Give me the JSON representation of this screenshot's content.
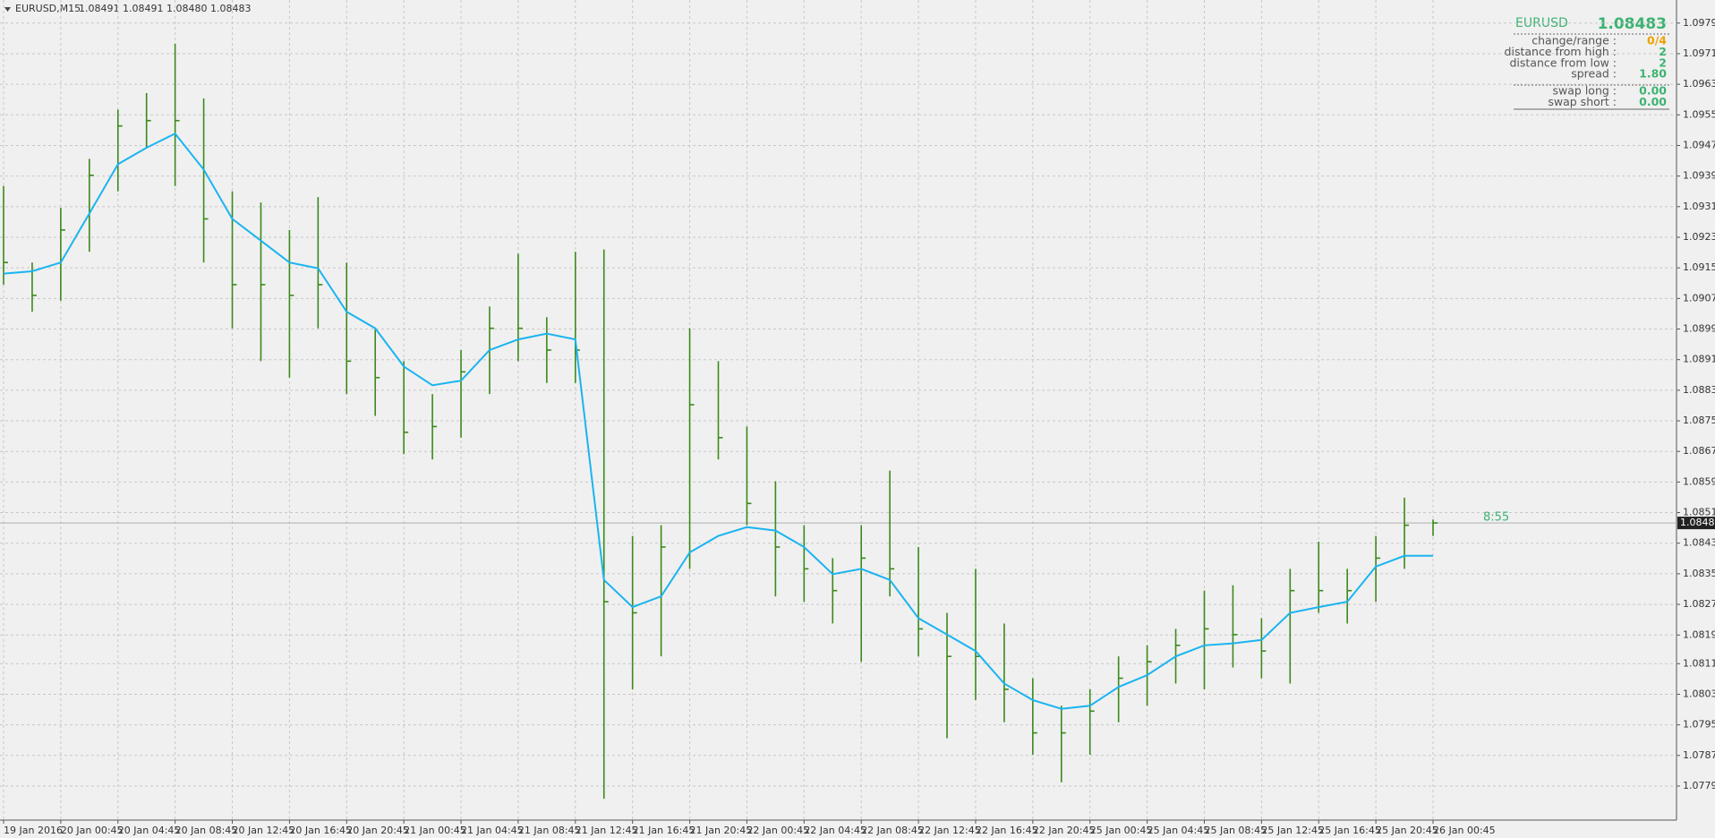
{
  "chart_data": {
    "type": "ohlc",
    "title": "EURUSD,M15",
    "header_ohlc": "1.08491 1.08491 1.08480 1.08483",
    "color": "#3a8a1a",
    "categories": [
      "19 Jan 2016",
      null,
      "20 Jan 00:45",
      null,
      "20 Jan 04:45",
      null,
      "20 Jan 08:45",
      null,
      "20 Jan 12:45",
      null,
      "20 Jan 16:45",
      null,
      "20 Jan 20:45",
      null,
      "21 Jan 00:45",
      null,
      "21 Jan 04:45",
      null,
      "21 Jan 08:45",
      null,
      "21 Jan 12:45",
      null,
      "21 Jan 16:45",
      null,
      "21 Jan 20:45",
      null,
      "22 Jan 00:45",
      null,
      "22 Jan 04:45",
      null,
      "22 Jan 08:45",
      null,
      "22 Jan 12:45",
      null,
      "22 Jan 16:45",
      null,
      "22 Jan 20:45",
      null,
      "25 Jan 00:45",
      null,
      "25 Jan 04:45",
      null,
      "25 Jan 08:45",
      null,
      "25 Jan 12:45",
      null,
      "25 Jan 16:45",
      null,
      "25 Jan 20:45",
      null,
      "26 Jan 00:45"
    ],
    "high": [
      1.09364,
      1.09164,
      1.09307,
      1.09435,
      1.09564,
      1.09607,
      1.09736,
      1.09593,
      1.0935,
      1.09321,
      1.09249,
      1.09335,
      1.09164,
      1.08992,
      1.08906,
      1.0882,
      1.08935,
      1.09049,
      1.09187,
      1.09021,
      1.09192,
      1.09198,
      1.08449,
      1.08477,
      1.08992,
      1.08906,
      1.08735,
      1.08592,
      1.08477,
      1.08391,
      1.08477,
      1.0862,
      1.0842,
      1.08248,
      1.08363,
      1.0822,
      1.08077,
      1.08005,
      1.08048,
      1.08134,
      1.08163,
      1.08206,
      1.08306,
      1.0832,
      1.08234,
      1.08363,
      1.08434,
      1.08363,
      1.08449,
      1.08549,
      1.08492
    ],
    "low": [
      1.09106,
      1.09035,
      1.09064,
      1.09192,
      1.0935,
      1.09464,
      1.09364,
      1.09164,
      1.08992,
      1.08906,
      1.08863,
      1.08992,
      1.0882,
      1.08763,
      1.08663,
      1.08649,
      1.08706,
      1.0882,
      1.08906,
      1.08849,
      1.08849,
      1.07762,
      1.08048,
      1.08134,
      1.08363,
      1.08649,
      1.08477,
      1.08291,
      1.08277,
      1.0822,
      1.0812,
      1.08291,
      1.08134,
      1.0792,
      1.0802,
      1.07962,
      1.07877,
      1.07805,
      1.07877,
      1.07962,
      1.08005,
      1.08063,
      1.08048,
      1.08105,
      1.08077,
      1.08063,
      1.08248,
      1.0822,
      1.08277,
      1.08363,
      1.08449
    ],
    "close": [
      1.09164,
      1.09078,
      1.09249,
      1.09392,
      1.09521,
      1.09535,
      1.09535,
      1.09278,
      1.09106,
      1.09106,
      1.09078,
      1.09106,
      1.08906,
      1.08863,
      1.0872,
      1.08735,
      1.08878,
      1.08992,
      1.08992,
      1.08935,
      1.08935,
      1.08277,
      1.08248,
      1.0842,
      1.08792,
      1.08706,
      1.08534,
      1.0842,
      1.08363,
      1.08306,
      1.08391,
      1.08363,
      1.08206,
      1.08134,
      1.08134,
      1.08048,
      1.07934,
      1.07934,
      1.07991,
      1.08077,
      1.0812,
      1.08163,
      1.08206,
      1.08191,
      1.08148,
      1.08306,
      1.08306,
      1.08306,
      1.08391,
      1.08477,
      1.08483
    ],
    "ma": {
      "color": "#1ab4f0",
      "values": [
        1.09135,
        1.09141,
        1.09164,
        1.09292,
        1.09421,
        1.09464,
        1.09501,
        1.09407,
        1.09278,
        1.09221,
        1.09164,
        1.09149,
        1.09035,
        1.08992,
        1.08892,
        1.08843,
        1.08855,
        1.08935,
        1.08963,
        1.08978,
        1.08963,
        1.08334,
        1.08263,
        1.08291,
        1.08406,
        1.08449,
        1.08472,
        1.08463,
        1.0842,
        1.08349,
        1.08363,
        1.08334,
        1.08234,
        1.08191,
        1.08148,
        1.08063,
        1.0802,
        1.07997,
        1.08005,
        1.08054,
        1.08085,
        1.08134,
        1.08163,
        1.08168,
        1.08177,
        1.08248,
        1.08263,
        1.08277,
        1.08369,
        1.08397,
        1.08397
      ]
    },
    "current_price": 1.08483,
    "timer": "8:55",
    "ylim": [
      1.07706,
      1.09841
    ],
    "yticks": [
      {
        "value": 1.0979,
        "label": "1.09790"
      },
      {
        "value": 1.0971,
        "label": "1.09710"
      },
      {
        "value": 1.0963,
        "label": "1.09630"
      },
      {
        "value": 1.0955,
        "label": "1.09550"
      },
      {
        "value": 1.0947,
        "label": "1.09470"
      },
      {
        "value": 1.0939,
        "label": "1.09390"
      },
      {
        "value": 1.0931,
        "label": "1.09310"
      },
      {
        "value": 1.0923,
        "label": "1.09230"
      },
      {
        "value": 1.0915,
        "label": "1.09150"
      },
      {
        "value": 1.0907,
        "label": "1.09070"
      },
      {
        "value": 1.0899,
        "label": "1.08990"
      },
      {
        "value": 1.0891,
        "label": "1.08910"
      },
      {
        "value": 1.0883,
        "label": "1.08830"
      },
      {
        "value": 1.0875,
        "label": "1.08750"
      },
      {
        "value": 1.0867,
        "label": "1.08670"
      },
      {
        "value": 1.0859,
        "label": "1.08590"
      },
      {
        "value": 1.0851,
        "label": "1.08510"
      },
      {
        "value": 1.0843,
        "label": "1.08430"
      },
      {
        "value": 1.0835,
        "label": "1.08350"
      },
      {
        "value": 1.0827,
        "label": "1.08270"
      },
      {
        "value": 1.0819,
        "label": "1.08190"
      },
      1.08115,
      1.08035,
      1.07955,
      1.07875,
      1.07795
    ],
    "grid": true
  },
  "info_panel": {
    "symbol": "EURUSD",
    "price": 1.08483,
    "rows": [
      {
        "label": "change/range :",
        "value": "0/4"
      },
      {
        "label": "distance from high :",
        "value": 2
      },
      {
        "label": "distance from low :",
        "value": 2
      },
      {
        "label": "spread :",
        "value": "1.80"
      }
    ],
    "swap_rows": [
      {
        "label": "swap long :",
        "value": "0.00"
      },
      {
        "label": "swap short :",
        "value": "0.00"
      }
    ]
  }
}
